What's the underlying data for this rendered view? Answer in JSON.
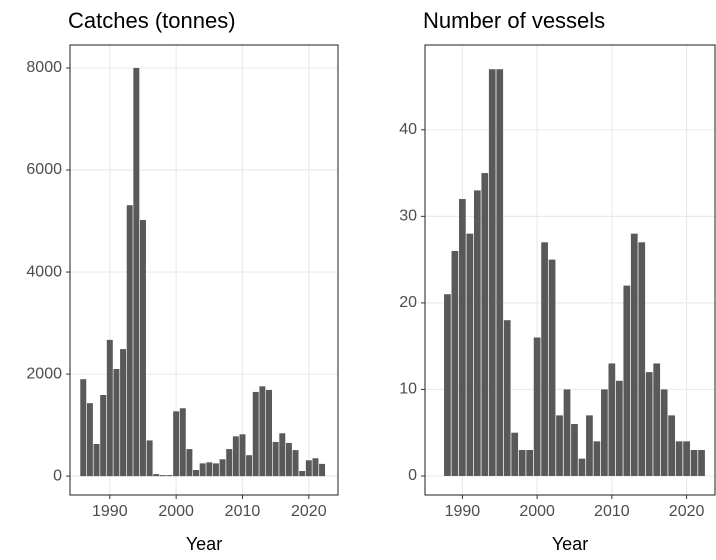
{
  "chart_data": [
    {
      "type": "bar",
      "title": "Catches (tonnes)",
      "x_label": "Year",
      "color": "#595959",
      "grid": true,
      "x": [
        1986,
        1987,
        1988,
        1989,
        1990,
        1991,
        1992,
        1993,
        1994,
        1995,
        1996,
        1997,
        1998,
        1999,
        2000,
        2001,
        2002,
        2003,
        2004,
        2005,
        2006,
        2007,
        2008,
        2009,
        2010,
        2011,
        2012,
        2013,
        2014,
        2015,
        2016,
        2017,
        2018,
        2019,
        2020,
        2021,
        2022
      ],
      "values": [
        1900,
        1430,
        630,
        1590,
        2670,
        2100,
        2490,
        5310,
        8000,
        5020,
        700,
        40,
        20,
        20,
        1270,
        1330,
        530,
        120,
        250,
        270,
        250,
        330,
        530,
        780,
        820,
        410,
        1650,
        1760,
        1690,
        670,
        840,
        650,
        510,
        100,
        310,
        350,
        240
      ],
      "xlim": [
        1984,
        2024.4
      ],
      "ylim": [
        -370,
        8450
      ],
      "xticks": [
        1990,
        2000,
        2010,
        2020
      ],
      "yticks": [
        0,
        2000,
        4000,
        6000,
        8000
      ]
    },
    {
      "type": "bar",
      "title": "Number of vessels",
      "x_label": "Year",
      "color": "#595959",
      "grid": true,
      "x": [
        1988,
        1989,
        1990,
        1991,
        1992,
        1993,
        1994,
        1995,
        1996,
        1997,
        1998,
        1999,
        2000,
        2001,
        2002,
        2003,
        2004,
        2005,
        2006,
        2007,
        2008,
        2009,
        2010,
        2011,
        2012,
        2013,
        2014,
        2015,
        2016,
        2017,
        2018,
        2019,
        2020,
        2021,
        2022
      ],
      "values": [
        21,
        26,
        32,
        28,
        33,
        35,
        47,
        47,
        18,
        5,
        3,
        3,
        16,
        27,
        25,
        7,
        10,
        6,
        2,
        7,
        4,
        10,
        13,
        11,
        22,
        28,
        27,
        12,
        13,
        10,
        7,
        4,
        4,
        3,
        3
      ],
      "xlim": [
        1985,
        2023.8
      ],
      "ylim": [
        -2.2,
        49.8
      ],
      "xticks": [
        1990,
        2000,
        2010,
        2020
      ],
      "yticks": [
        0,
        10,
        20,
        30,
        40
      ]
    }
  ]
}
